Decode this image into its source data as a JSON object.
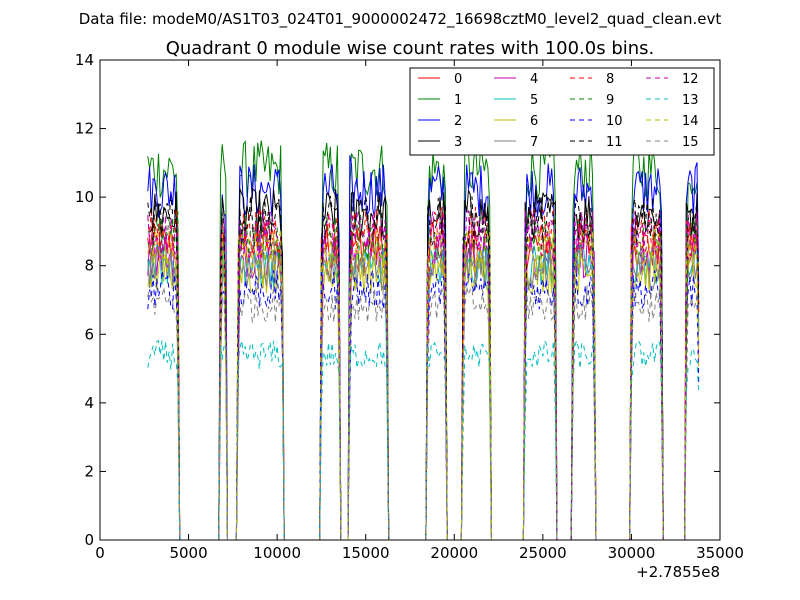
{
  "chart_data": {
    "type": "line",
    "suptitle": "Data file: modeM0/AS1T03_024T01_9000002472_16698cztM0_level2_quad_clean.evt",
    "title": "Quadrant 0 module wise count rates with 100.0s bins.",
    "xlabel": "",
    "ylabel": "",
    "x_offset_label": "+2.7855e8",
    "xlim": [
      0,
      35000
    ],
    "ylim": [
      0,
      14
    ],
    "x_ticks": [
      0,
      5000,
      10000,
      15000,
      20000,
      25000,
      30000,
      35000
    ],
    "y_ticks": [
      0,
      2,
      4,
      6,
      8,
      10,
      12,
      14
    ],
    "grid": false,
    "legend_position": "top-right",
    "segments": [
      {
        "start": 2700,
        "end": 4400,
        "dip": null
      },
      {
        "start": 6800,
        "end": 10300,
        "dip": [
          7200,
          7700
        ]
      },
      {
        "start": 12500,
        "end": 16200,
        "dip": [
          13600,
          14000
        ]
      },
      {
        "start": 18500,
        "end": 22000,
        "dip": [
          19600,
          20400
        ]
      },
      {
        "start": 24000,
        "end": 27900,
        "dip": [
          25800,
          26600
        ]
      },
      {
        "start": 30000,
        "end": 33800,
        "dip": [
          31800,
          33000
        ]
      }
    ],
    "series": [
      {
        "name": "0",
        "level": 8.6,
        "color": "#ff0000",
        "dashed": false
      },
      {
        "name": "1",
        "level": 10.8,
        "color": "#008000",
        "dashed": false
      },
      {
        "name": "2",
        "level": 10.2,
        "color": "#0000ff",
        "dashed": false
      },
      {
        "name": "3",
        "level": 9.5,
        "color": "#000000",
        "dashed": false
      },
      {
        "name": "4",
        "level": 8.3,
        "color": "#bf00bf",
        "dashed": false
      },
      {
        "name": "5",
        "level": 8.0,
        "color": "#00bfbf",
        "dashed": false
      },
      {
        "name": "6",
        "level": 7.8,
        "color": "#bfbf00",
        "dashed": false
      },
      {
        "name": "7",
        "level": 7.9,
        "color": "#808080",
        "dashed": false
      },
      {
        "name": "8",
        "level": 9.0,
        "color": "#ff0000",
        "dashed": true
      },
      {
        "name": "9",
        "level": 8.8,
        "color": "#008000",
        "dashed": true
      },
      {
        "name": "10",
        "level": 7.3,
        "color": "#0000ff",
        "dashed": true
      },
      {
        "name": "11",
        "level": 9.3,
        "color": "#000000",
        "dashed": true
      },
      {
        "name": "12",
        "level": 8.9,
        "color": "#bf00bf",
        "dashed": true
      },
      {
        "name": "13",
        "level": 5.4,
        "color": "#00bfbf",
        "dashed": true
      },
      {
        "name": "14",
        "level": 8.4,
        "color": "#bfbf00",
        "dashed": true
      },
      {
        "name": "15",
        "level": 6.9,
        "color": "#808080",
        "dashed": true
      }
    ]
  }
}
